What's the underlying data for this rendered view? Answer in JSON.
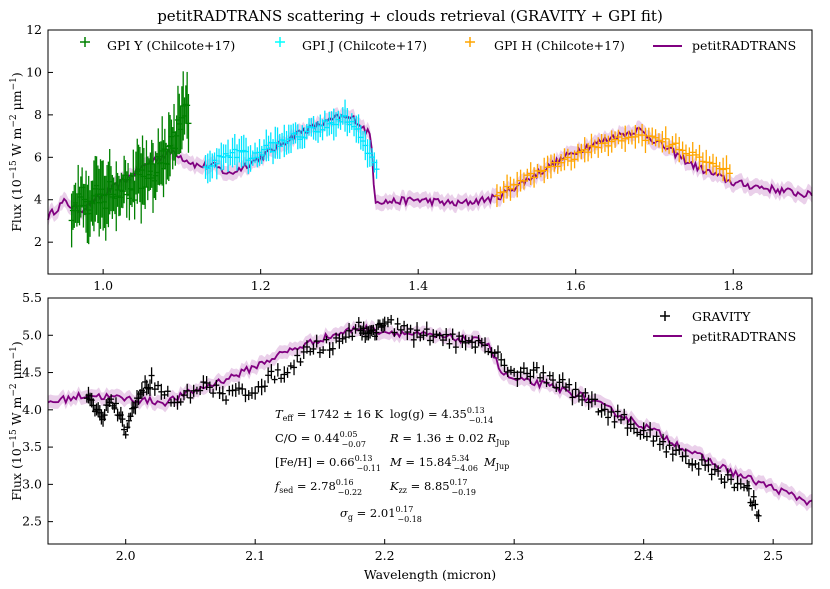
{
  "chart_data": [
    {
      "type": "scatter",
      "title": "petitRADTRANS scattering + clouds retrieval (GRAVITY + GPI fit)",
      "xlabel": "",
      "ylabel": "Flux (10^{-15} W m^{-2} μm^{-1})",
      "ylabel_parts": {
        "a": "Flux (10",
        "e1": "−15",
        "b": " W m",
        "e2": "−2",
        "c": " μm",
        "e3": "−1",
        "d": ")"
      },
      "xlim": [
        0.93,
        1.9
      ],
      "ylim": [
        0.5,
        12
      ],
      "xticks": [
        "1.0",
        "1.2",
        "1.4",
        "1.6",
        "1.8"
      ],
      "yticks": [
        "2",
        "4",
        "6",
        "8",
        "10",
        "12"
      ],
      "grid": false,
      "legend_position": "top",
      "series": [
        {
          "name": "GPI Y (Chilcote+17)",
          "color": "#008000",
          "marker": "+",
          "x_range": [
            0.96,
            1.11
          ]
        },
        {
          "name": "GPI J (Chilcote+17)",
          "color": "#00ffff",
          "marker": "+",
          "x_range": [
            1.13,
            1.35
          ]
        },
        {
          "name": "GPI H (Chilcote+17)",
          "color": "#ffa500",
          "marker": "+",
          "x_range": [
            1.49,
            1.8
          ]
        },
        {
          "name": "petitRADTRANS",
          "color": "#800080",
          "style": "line"
        }
      ],
      "model_x": [
        0.93,
        0.95,
        0.97,
        1.0,
        1.03,
        1.06,
        1.09,
        1.1,
        1.12,
        1.14,
        1.16,
        1.2,
        1.25,
        1.28,
        1.3,
        1.32,
        1.34,
        1.345,
        1.36,
        1.4,
        1.45,
        1.5,
        1.55,
        1.6,
        1.65,
        1.68,
        1.7,
        1.75,
        1.8,
        1.85,
        1.9
      ],
      "model_y": [
        3.2,
        3.9,
        3.5,
        4.2,
        5.0,
        5.8,
        6.3,
        6.0,
        5.6,
        5.6,
        5.2,
        6.0,
        7.2,
        7.6,
        7.9,
        7.8,
        7.0,
        4.0,
        3.9,
        4.0,
        3.8,
        4.1,
        5.2,
        6.3,
        7.0,
        7.3,
        6.8,
        5.6,
        4.8,
        4.5,
        4.2
      ],
      "gpi_y_x": [
        0.96,
        0.97,
        0.98,
        0.99,
        1.0,
        1.01,
        1.02,
        1.03,
        1.04,
        1.05,
        1.06,
        1.07,
        1.08,
        1.09,
        1.1,
        1.11
      ],
      "gpi_y_y": [
        3.5,
        4.0,
        3.8,
        4.4,
        4.0,
        4.6,
        4.2,
        4.8,
        4.5,
        5.1,
        5.0,
        5.6,
        6.0,
        6.6,
        7.8,
        8.0
      ],
      "gpi_j_x": [
        1.13,
        1.15,
        1.17,
        1.19,
        1.21,
        1.23,
        1.25,
        1.27,
        1.29,
        1.31,
        1.33,
        1.35
      ],
      "gpi_j_y": [
        5.6,
        5.9,
        6.2,
        6.0,
        6.4,
        6.8,
        7.0,
        7.4,
        7.7,
        7.8,
        7.0,
        5.0
      ],
      "gpi_h_x": [
        1.5,
        1.53,
        1.56,
        1.59,
        1.62,
        1.65,
        1.68,
        1.71,
        1.74,
        1.77,
        1.8
      ],
      "gpi_h_y": [
        4.3,
        4.9,
        5.4,
        5.9,
        6.4,
        6.8,
        7.0,
        6.8,
        6.3,
        5.8,
        5.2
      ]
    },
    {
      "type": "scatter",
      "title": "",
      "xlabel": "Wavelength (micron)",
      "ylabel": "Flux (10^{-15} W m^{-2} μm^{-1})",
      "xlim": [
        1.94,
        2.53
      ],
      "ylim": [
        2.2,
        5.5
      ],
      "xticks": [
        "2.0",
        "2.1",
        "2.2",
        "2.3",
        "2.4",
        "2.5"
      ],
      "yticks": [
        "2.5",
        "3.0",
        "3.5",
        "4.0",
        "4.5",
        "5.0",
        "5.5"
      ],
      "grid": false,
      "legend_position": "top-right",
      "series": [
        {
          "name": "GRAVITY",
          "color": "#000000",
          "marker": "+"
        },
        {
          "name": "petitRADTRANS",
          "color": "#800080",
          "style": "line"
        }
      ],
      "model_x": [
        1.94,
        1.97,
        2.0,
        2.03,
        2.06,
        2.09,
        2.12,
        2.15,
        2.18,
        2.2,
        2.23,
        2.26,
        2.28,
        2.29,
        2.3,
        2.32,
        2.35,
        2.38,
        2.41,
        2.44,
        2.47,
        2.5,
        2.53
      ],
      "model_y": [
        4.1,
        4.2,
        4.15,
        4.1,
        4.3,
        4.5,
        4.75,
        4.95,
        5.1,
        5.05,
        5.0,
        4.95,
        4.9,
        4.5,
        4.4,
        4.35,
        4.2,
        3.95,
        3.7,
        3.4,
        3.15,
        2.95,
        2.75
      ],
      "gravity_x": [
        1.97,
        1.98,
        1.99,
        2.0,
        2.01,
        2.02,
        2.04,
        2.06,
        2.08,
        2.1,
        2.12,
        2.14,
        2.16,
        2.18,
        2.19,
        2.2,
        2.22,
        2.24,
        2.26,
        2.28,
        2.3,
        2.32,
        2.34,
        2.36,
        2.38,
        2.4,
        2.42,
        2.44,
        2.46,
        2.48,
        2.49
      ],
      "gravity_y": [
        4.2,
        3.9,
        4.1,
        3.7,
        4.2,
        4.4,
        4.1,
        4.3,
        4.2,
        4.3,
        4.5,
        4.8,
        4.9,
        5.1,
        5.0,
        5.2,
        5.0,
        5.0,
        4.9,
        4.8,
        4.5,
        4.5,
        4.3,
        4.1,
        3.9,
        3.7,
        3.5,
        3.3,
        3.1,
        2.9,
        2.6
      ],
      "annotations": {
        "teff": {
          "lhs": "T",
          "sub": "eff",
          "val": " = 1742 ± 16 K"
        },
        "logg": {
          "val": "log(g) = 4.35",
          "sup": "0.13",
          "sub": "−0.14"
        },
        "co": {
          "val": "C/O = 0.44",
          "sup": "0.05",
          "sub": "−0.07"
        },
        "radius": {
          "lhs": "R",
          "val": " = 1.36 ± 0.02 ",
          "unit": "R",
          "unit_sub": "Jup"
        },
        "feh": {
          "val": "[Fe/H] = 0.66",
          "sup": "0.13",
          "sub": "−0.11"
        },
        "mass": {
          "lhs": "M",
          "val": " = 15.84",
          "sup": "5.34",
          "sub": "−4.06",
          "unit": "M",
          "unit_sub": "Jup"
        },
        "fsed": {
          "lhs": "f",
          "lhs_sub": "sed",
          "val": " = 2.78",
          "sup": "0.16",
          "sub": "−0.22"
        },
        "kzz": {
          "lhs": "K",
          "lhs_sub": "zz",
          "val": " = 8.85",
          "sup": "0.17",
          "sub": "−0.19"
        },
        "sigma": {
          "lhs": "σ",
          "lhs_sub": "g",
          "val": " = 2.01",
          "sup": "0.17",
          "sub": "−0.18"
        }
      }
    }
  ]
}
